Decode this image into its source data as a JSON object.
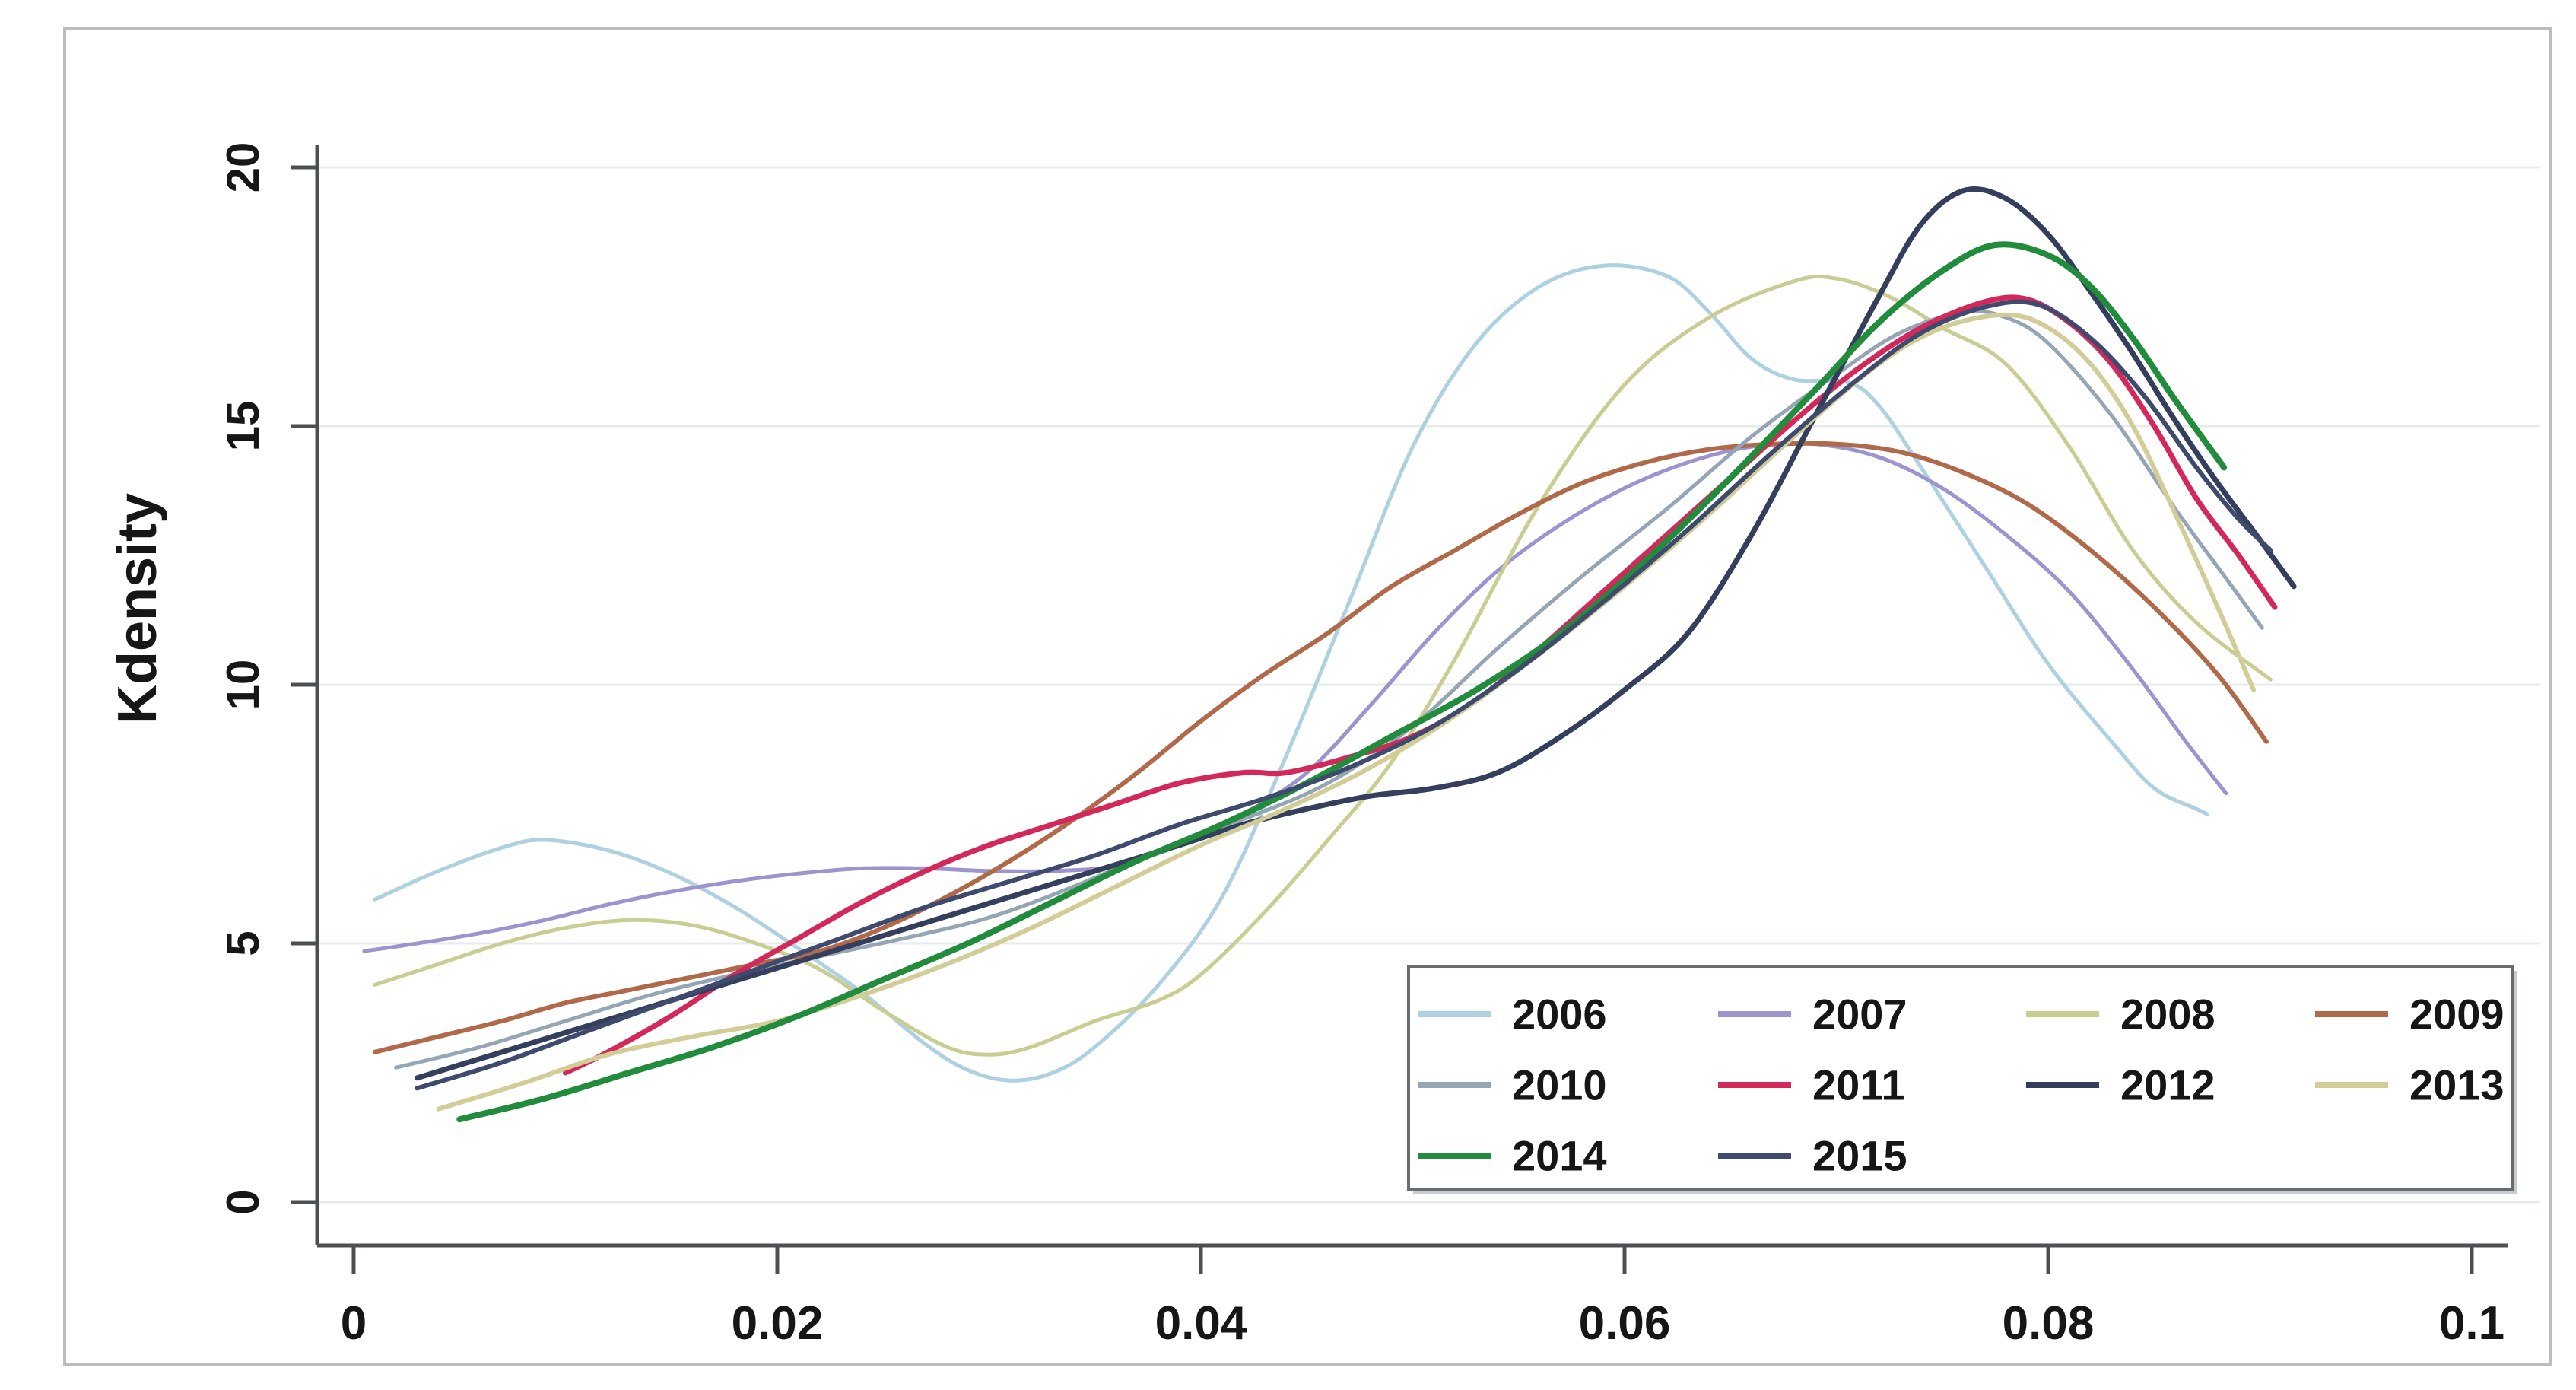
{
  "chart_data": {
    "type": "line",
    "title": "",
    "xlabel": "",
    "ylabel": "Kdensity",
    "xlim": [
      0,
      0.1
    ],
    "ylim": [
      0,
      20
    ],
    "grid": "horizontal",
    "x_ticks": {
      "values": [
        0,
        0.02,
        0.04,
        0.06,
        0.08,
        0.1
      ],
      "labels": [
        "0",
        "0.02",
        "0.04",
        "0.06",
        "0.08",
        "0.1"
      ]
    },
    "y_ticks": {
      "values": [
        0,
        5,
        10,
        15,
        20
      ],
      "labels": [
        "0",
        "5",
        "10",
        "15",
        "20"
      ]
    },
    "legend": {
      "position": "inside-bottom-right",
      "columns": 4,
      "border": true
    },
    "colors": {
      "axis": "#4d5052",
      "grid": "#e8ebeb",
      "figure_border": "#b9bdbf",
      "legend_border": "#686c70",
      "text": "#161616"
    },
    "series": [
      {
        "name": "2006",
        "color": "#aed1e2",
        "width": 5,
        "points": [
          [
            0.001,
            5.85
          ],
          [
            0.004,
            6.4
          ],
          [
            0.007,
            6.85
          ],
          [
            0.009,
            7.0
          ],
          [
            0.012,
            6.8
          ],
          [
            0.015,
            6.35
          ],
          [
            0.018,
            5.7
          ],
          [
            0.021,
            4.9
          ],
          [
            0.024,
            4.05
          ],
          [
            0.027,
            3.05
          ],
          [
            0.029,
            2.55
          ],
          [
            0.031,
            2.35
          ],
          [
            0.033,
            2.5
          ],
          [
            0.035,
            3.0
          ],
          [
            0.038,
            4.2
          ],
          [
            0.041,
            5.9
          ],
          [
            0.044,
            8.6
          ],
          [
            0.047,
            11.6
          ],
          [
            0.05,
            14.6
          ],
          [
            0.053,
            16.6
          ],
          [
            0.056,
            17.7
          ],
          [
            0.059,
            18.1
          ],
          [
            0.062,
            17.9
          ],
          [
            0.064,
            17.2
          ],
          [
            0.066,
            16.3
          ],
          [
            0.068,
            15.9
          ],
          [
            0.0705,
            15.85
          ],
          [
            0.072,
            15.4
          ],
          [
            0.074,
            14.2
          ],
          [
            0.077,
            12.3
          ],
          [
            0.08,
            10.4
          ],
          [
            0.083,
            8.9
          ],
          [
            0.085,
            8.0
          ],
          [
            0.087,
            7.6
          ],
          [
            0.0875,
            7.5
          ]
        ]
      },
      {
        "name": "2007",
        "color": "#9b94cf",
        "width": 5,
        "points": [
          [
            0.0005,
            4.85
          ],
          [
            0.003,
            5.0
          ],
          [
            0.006,
            5.2
          ],
          [
            0.009,
            5.45
          ],
          [
            0.012,
            5.75
          ],
          [
            0.015,
            6.0
          ],
          [
            0.018,
            6.2
          ],
          [
            0.021,
            6.35
          ],
          [
            0.024,
            6.45
          ],
          [
            0.027,
            6.45
          ],
          [
            0.03,
            6.4
          ],
          [
            0.033,
            6.4
          ],
          [
            0.036,
            6.5
          ],
          [
            0.039,
            6.9
          ],
          [
            0.042,
            7.5
          ],
          [
            0.045,
            8.3
          ],
          [
            0.048,
            9.6
          ],
          [
            0.051,
            11.0
          ],
          [
            0.054,
            12.2
          ],
          [
            0.057,
            13.1
          ],
          [
            0.06,
            13.8
          ],
          [
            0.063,
            14.3
          ],
          [
            0.066,
            14.6
          ],
          [
            0.069,
            14.65
          ],
          [
            0.072,
            14.4
          ],
          [
            0.075,
            13.8
          ],
          [
            0.078,
            12.9
          ],
          [
            0.081,
            11.8
          ],
          [
            0.084,
            10.3
          ],
          [
            0.0865,
            8.9
          ],
          [
            0.0884,
            7.9
          ]
        ]
      },
      {
        "name": "2008",
        "color": "#c9cd92",
        "width": 5,
        "points": [
          [
            0.001,
            4.2
          ],
          [
            0.004,
            4.6
          ],
          [
            0.007,
            5.0
          ],
          [
            0.01,
            5.3
          ],
          [
            0.013,
            5.45
          ],
          [
            0.016,
            5.35
          ],
          [
            0.019,
            5.0
          ],
          [
            0.022,
            4.5
          ],
          [
            0.025,
            3.7
          ],
          [
            0.028,
            3.0
          ],
          [
            0.03,
            2.85
          ],
          [
            0.032,
            3.0
          ],
          [
            0.035,
            3.5
          ],
          [
            0.038,
            3.9
          ],
          [
            0.04,
            4.4
          ],
          [
            0.043,
            5.6
          ],
          [
            0.046,
            7.0
          ],
          [
            0.049,
            8.5
          ],
          [
            0.052,
            10.5
          ],
          [
            0.056,
            13.5
          ],
          [
            0.06,
            15.8
          ],
          [
            0.064,
            17.1
          ],
          [
            0.068,
            17.8
          ],
          [
            0.07,
            17.85
          ],
          [
            0.0725,
            17.5
          ],
          [
            0.075,
            16.9
          ],
          [
            0.078,
            16.2
          ],
          [
            0.081,
            14.6
          ],
          [
            0.084,
            12.6
          ],
          [
            0.087,
            11.2
          ],
          [
            0.0905,
            10.1
          ]
        ]
      },
      {
        "name": "2009",
        "color": "#b16a49",
        "width": 6,
        "points": [
          [
            0.001,
            2.9
          ],
          [
            0.004,
            3.2
          ],
          [
            0.007,
            3.5
          ],
          [
            0.01,
            3.85
          ],
          [
            0.013,
            4.1
          ],
          [
            0.016,
            4.35
          ],
          [
            0.019,
            4.6
          ],
          [
            0.022,
            4.85
          ],
          [
            0.025,
            5.3
          ],
          [
            0.028,
            5.9
          ],
          [
            0.031,
            6.6
          ],
          [
            0.034,
            7.4
          ],
          [
            0.037,
            8.3
          ],
          [
            0.04,
            9.3
          ],
          [
            0.043,
            10.2
          ],
          [
            0.046,
            11.0
          ],
          [
            0.049,
            11.9
          ],
          [
            0.052,
            12.6
          ],
          [
            0.055,
            13.3
          ],
          [
            0.058,
            13.9
          ],
          [
            0.061,
            14.3
          ],
          [
            0.064,
            14.55
          ],
          [
            0.067,
            14.65
          ],
          [
            0.07,
            14.65
          ],
          [
            0.073,
            14.5
          ],
          [
            0.076,
            14.1
          ],
          [
            0.079,
            13.5
          ],
          [
            0.082,
            12.6
          ],
          [
            0.085,
            11.5
          ],
          [
            0.088,
            10.2
          ],
          [
            0.0903,
            8.9
          ]
        ]
      },
      {
        "name": "2010",
        "color": "#94a6b6",
        "width": 5,
        "points": [
          [
            0.002,
            2.6
          ],
          [
            0.006,
            3.0
          ],
          [
            0.01,
            3.5
          ],
          [
            0.014,
            4.0
          ],
          [
            0.018,
            4.4
          ],
          [
            0.022,
            4.75
          ],
          [
            0.026,
            5.1
          ],
          [
            0.03,
            5.5
          ],
          [
            0.034,
            6.1
          ],
          [
            0.038,
            6.8
          ],
          [
            0.042,
            7.4
          ],
          [
            0.046,
            8.1
          ],
          [
            0.05,
            9.2
          ],
          [
            0.054,
            10.7
          ],
          [
            0.058,
            12.1
          ],
          [
            0.062,
            13.4
          ],
          [
            0.066,
            14.8
          ],
          [
            0.07,
            16.0
          ],
          [
            0.073,
            16.8
          ],
          [
            0.076,
            17.2
          ],
          [
            0.078,
            17.1
          ],
          [
            0.08,
            16.6
          ],
          [
            0.083,
            15.2
          ],
          [
            0.086,
            13.4
          ],
          [
            0.0885,
            12.0
          ],
          [
            0.0901,
            11.1
          ]
        ]
      },
      {
        "name": "2011",
        "color": "#d5285a",
        "width": 7,
        "points": [
          [
            0.01,
            2.5
          ],
          [
            0.012,
            2.9
          ],
          [
            0.015,
            3.6
          ],
          [
            0.018,
            4.4
          ],
          [
            0.021,
            5.1
          ],
          [
            0.024,
            5.8
          ],
          [
            0.027,
            6.4
          ],
          [
            0.03,
            6.9
          ],
          [
            0.033,
            7.3
          ],
          [
            0.036,
            7.7
          ],
          [
            0.039,
            8.1
          ],
          [
            0.042,
            8.3
          ],
          [
            0.044,
            8.3
          ],
          [
            0.047,
            8.6
          ],
          [
            0.05,
            9.0
          ],
          [
            0.053,
            9.7
          ],
          [
            0.056,
            10.7
          ],
          [
            0.059,
            11.8
          ],
          [
            0.062,
            12.9
          ],
          [
            0.065,
            14.0
          ],
          [
            0.068,
            15.1
          ],
          [
            0.071,
            16.1
          ],
          [
            0.074,
            16.9
          ],
          [
            0.077,
            17.4
          ],
          [
            0.079,
            17.45
          ],
          [
            0.081,
            17.0
          ],
          [
            0.083,
            16.2
          ],
          [
            0.085,
            15.0
          ],
          [
            0.087,
            13.6
          ],
          [
            0.089,
            12.5
          ],
          [
            0.0907,
            11.5
          ]
        ]
      },
      {
        "name": "2012",
        "color": "#333f5c",
        "width": 7,
        "points": [
          [
            0.003,
            2.4
          ],
          [
            0.007,
            2.9
          ],
          [
            0.011,
            3.4
          ],
          [
            0.015,
            3.9
          ],
          [
            0.019,
            4.4
          ],
          [
            0.023,
            4.9
          ],
          [
            0.027,
            5.4
          ],
          [
            0.031,
            5.9
          ],
          [
            0.035,
            6.4
          ],
          [
            0.039,
            6.9
          ],
          [
            0.042,
            7.3
          ],
          [
            0.045,
            7.6
          ],
          [
            0.048,
            7.85
          ],
          [
            0.051,
            8.0
          ],
          [
            0.054,
            8.3
          ],
          [
            0.057,
            9.0
          ],
          [
            0.06,
            9.9
          ],
          [
            0.063,
            11.0
          ],
          [
            0.066,
            12.9
          ],
          [
            0.069,
            15.2
          ],
          [
            0.072,
            17.5
          ],
          [
            0.074,
            18.9
          ],
          [
            0.076,
            19.55
          ],
          [
            0.078,
            19.4
          ],
          [
            0.08,
            18.7
          ],
          [
            0.082,
            17.6
          ],
          [
            0.084,
            16.4
          ],
          [
            0.086,
            15.1
          ],
          [
            0.088,
            13.9
          ],
          [
            0.09,
            12.8
          ],
          [
            0.0916,
            11.9
          ]
        ]
      },
      {
        "name": "2013",
        "color": "#d2cd96",
        "width": 6,
        "points": [
          [
            0.004,
            1.8
          ],
          [
            0.008,
            2.3
          ],
          [
            0.012,
            2.85
          ],
          [
            0.016,
            3.2
          ],
          [
            0.02,
            3.5
          ],
          [
            0.024,
            4.0
          ],
          [
            0.028,
            4.6
          ],
          [
            0.032,
            5.3
          ],
          [
            0.036,
            6.1
          ],
          [
            0.04,
            6.9
          ],
          [
            0.044,
            7.6
          ],
          [
            0.048,
            8.4
          ],
          [
            0.052,
            9.4
          ],
          [
            0.056,
            10.6
          ],
          [
            0.06,
            11.9
          ],
          [
            0.064,
            13.3
          ],
          [
            0.068,
            14.8
          ],
          [
            0.072,
            16.2
          ],
          [
            0.075,
            16.9
          ],
          [
            0.078,
            17.15
          ],
          [
            0.08,
            16.9
          ],
          [
            0.082,
            16.2
          ],
          [
            0.084,
            15.0
          ],
          [
            0.086,
            13.3
          ],
          [
            0.088,
            11.5
          ],
          [
            0.0897,
            9.9
          ]
        ]
      },
      {
        "name": "2014",
        "color": "#208c3c",
        "width": 8,
        "points": [
          [
            0.005,
            1.6
          ],
          [
            0.009,
            2.0
          ],
          [
            0.013,
            2.5
          ],
          [
            0.017,
            3.0
          ],
          [
            0.021,
            3.6
          ],
          [
            0.025,
            4.3
          ],
          [
            0.029,
            5.0
          ],
          [
            0.033,
            5.8
          ],
          [
            0.037,
            6.6
          ],
          [
            0.041,
            7.3
          ],
          [
            0.045,
            8.1
          ],
          [
            0.049,
            9.0
          ],
          [
            0.053,
            9.9
          ],
          [
            0.057,
            11.0
          ],
          [
            0.061,
            12.4
          ],
          [
            0.065,
            14.0
          ],
          [
            0.069,
            15.7
          ],
          [
            0.072,
            17.0
          ],
          [
            0.075,
            18.0
          ],
          [
            0.0775,
            18.5
          ],
          [
            0.08,
            18.3
          ],
          [
            0.082,
            17.7
          ],
          [
            0.084,
            16.7
          ],
          [
            0.086,
            15.5
          ],
          [
            0.0883,
            14.2
          ]
        ]
      },
      {
        "name": "2015",
        "color": "#3e4a6e",
        "width": 6,
        "points": [
          [
            0.003,
            2.2
          ],
          [
            0.007,
            2.7
          ],
          [
            0.011,
            3.3
          ],
          [
            0.015,
            3.9
          ],
          [
            0.019,
            4.5
          ],
          [
            0.023,
            5.1
          ],
          [
            0.027,
            5.7
          ],
          [
            0.031,
            6.2
          ],
          [
            0.035,
            6.7
          ],
          [
            0.039,
            7.3
          ],
          [
            0.043,
            7.8
          ],
          [
            0.047,
            8.4
          ],
          [
            0.051,
            9.2
          ],
          [
            0.055,
            10.3
          ],
          [
            0.059,
            11.6
          ],
          [
            0.063,
            13.0
          ],
          [
            0.067,
            14.5
          ],
          [
            0.071,
            15.9
          ],
          [
            0.074,
            16.8
          ],
          [
            0.077,
            17.3
          ],
          [
            0.0795,
            17.35
          ],
          [
            0.082,
            16.7
          ],
          [
            0.0845,
            15.6
          ],
          [
            0.087,
            14.2
          ],
          [
            0.089,
            13.2
          ],
          [
            0.0905,
            12.6
          ]
        ]
      }
    ]
  }
}
